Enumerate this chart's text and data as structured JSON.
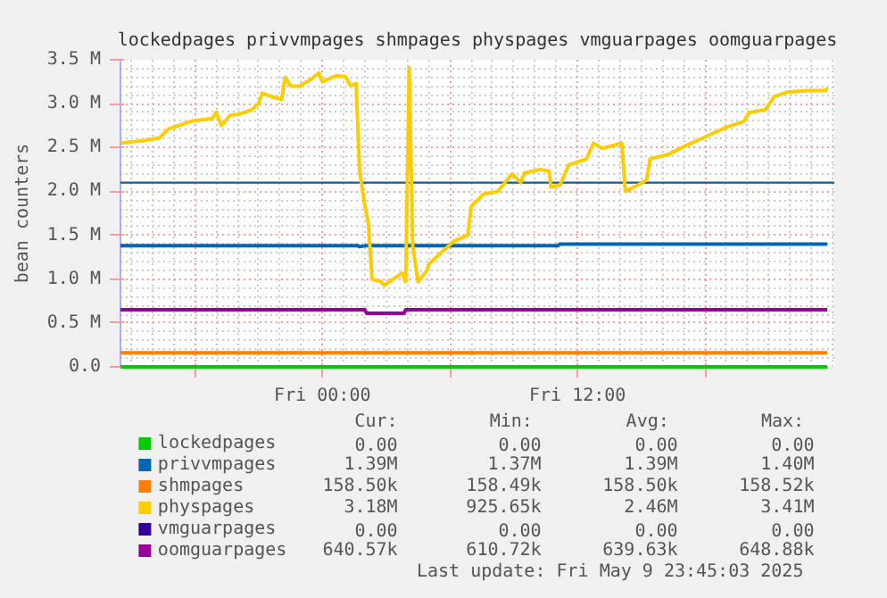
{
  "chart_data": {
    "type": "line",
    "title": "lockedpages privvmpages shmpages physpages vmguarpages oomguarpages",
    "ylabel": "bean counters",
    "xlim": [
      "2025-05-08T14:30",
      "2025-05-10T00:05"
    ],
    "xticks": [
      {
        "value": "2025-05-08T18:00",
        "label": null
      },
      {
        "value": "2025-05-09T00:00",
        "label": "Fri 00:00"
      },
      {
        "value": "2025-05-09T06:00",
        "label": null
      },
      {
        "value": "2025-05-09T12:00",
        "label": "Fri 12:00"
      },
      {
        "value": "2025-05-09T18:00",
        "label": null
      }
    ],
    "ylim": [
      0,
      3500000
    ],
    "yticks": [
      {
        "value": 0,
        "label": "0.0"
      },
      {
        "value": 500000,
        "label": "0.5 M"
      },
      {
        "value": 1000000,
        "label": "1.0 M"
      },
      {
        "value": 1500000,
        "label": "1.5 M"
      },
      {
        "value": 2000000,
        "label": "2.0 M"
      },
      {
        "value": 2500000,
        "label": "2.5 M"
      },
      {
        "value": 3000000,
        "label": "3.0 M"
      },
      {
        "value": 3500000,
        "label": "3.5 M"
      }
    ],
    "grid": true,
    "legend": "bottom",
    "ref_lines": [
      {
        "axis": "y",
        "value": 2100000,
        "color": "#1a5a96"
      }
    ],
    "series": [
      {
        "name": "lockedpages",
        "color": "#00cc00",
        "x": [
          "2025-05-08T14:30",
          "2025-05-09T23:45"
        ],
        "values": [
          0,
          0
        ]
      },
      {
        "name": "privvmpages",
        "color": "#0066b3",
        "x": [
          "2025-05-08T14:30",
          "2025-05-09T01:40",
          "2025-05-09T01:45",
          "2025-05-09T02:00",
          "2025-05-09T11:05",
          "2025-05-09T11:10",
          "2025-05-09T23:45"
        ],
        "values": [
          1380000,
          1380000,
          1370000,
          1380000,
          1380000,
          1400000,
          1400000
        ]
      },
      {
        "name": "shmpages",
        "color": "#ff8000",
        "x": [
          "2025-05-08T14:30",
          "2025-05-09T23:45"
        ],
        "values": [
          160000,
          160000
        ]
      },
      {
        "name": "physpages",
        "color": "#ffcc00",
        "x": [
          "2025-05-08T14:30",
          "2025-05-08T15:35",
          "2025-05-08T16:20",
          "2025-05-08T16:45",
          "2025-05-08T17:50",
          "2025-05-08T18:50",
          "2025-05-08T19:00",
          "2025-05-08T19:15",
          "2025-05-08T19:40",
          "2025-05-08T20:05",
          "2025-05-08T20:40",
          "2025-05-08T21:00",
          "2025-05-08T21:10",
          "2025-05-08T21:45",
          "2025-05-08T22:05",
          "2025-05-08T22:15",
          "2025-05-08T22:30",
          "2025-05-08T22:55",
          "2025-05-08T23:25",
          "2025-05-08T23:50",
          "2025-05-09T00:00",
          "2025-05-09T00:40",
          "2025-05-09T01:05",
          "2025-05-09T01:20",
          "2025-05-09T01:35",
          "2025-05-09T01:45",
          "2025-05-09T02:00",
          "2025-05-09T02:10",
          "2025-05-09T02:20",
          "2025-05-09T02:45",
          "2025-05-09T02:55",
          "2025-05-09T03:20",
          "2025-05-09T03:45",
          "2025-05-09T03:55",
          "2025-05-09T04:05",
          "2025-05-09T04:15",
          "2025-05-09T04:30",
          "2025-05-09T04:55",
          "2025-05-09T05:00",
          "2025-05-09T05:35",
          "2025-05-09T06:10",
          "2025-05-09T06:50",
          "2025-05-09T07:00",
          "2025-05-09T07:35",
          "2025-05-09T08:15",
          "2025-05-09T08:55",
          "2025-05-09T09:20",
          "2025-05-09T09:30",
          "2025-05-09T10:15",
          "2025-05-09T10:40",
          "2025-05-09T10:45",
          "2025-05-09T11:10",
          "2025-05-09T11:35",
          "2025-05-09T12:25",
          "2025-05-09T12:45",
          "2025-05-09T13:10",
          "2025-05-09T14:05",
          "2025-05-09T14:15",
          "2025-05-09T14:50",
          "2025-05-09T15:15",
          "2025-05-09T15:25",
          "2025-05-09T16:15",
          "2025-05-09T17:10",
          "2025-05-09T18:00",
          "2025-05-09T19:00",
          "2025-05-09T19:50",
          "2025-05-09T20:05",
          "2025-05-09T20:50",
          "2025-05-09T21:15",
          "2025-05-09T21:50",
          "2025-05-09T22:50",
          "2025-05-09T23:40",
          "2025-05-09T23:45"
        ],
        "values": [
          2550000,
          2580000,
          2610000,
          2710000,
          2800000,
          2830000,
          2900000,
          2750000,
          2870000,
          2880000,
          2930000,
          3000000,
          3120000,
          3070000,
          3050000,
          3300000,
          3200000,
          3200000,
          3270000,
          3350000,
          3250000,
          3320000,
          3310000,
          3200000,
          3230000,
          2230000,
          1830000,
          1630000,
          1000000,
          970000,
          930000,
          1000000,
          1070000,
          970000,
          3410000,
          1370000,
          970000,
          1100000,
          1170000,
          1300000,
          1430000,
          1500000,
          1830000,
          1970000,
          2000000,
          2200000,
          2100000,
          2210000,
          2250000,
          2230000,
          2050000,
          2070000,
          2300000,
          2370000,
          2550000,
          2490000,
          2550000,
          2000000,
          2070000,
          2130000,
          2370000,
          2420000,
          2530000,
          2620000,
          2730000,
          2800000,
          2900000,
          2930000,
          3080000,
          3130000,
          3150000,
          3150000,
          3180000
        ]
      },
      {
        "name": "vmguarpages",
        "color": "#330099"
      },
      {
        "name": "oomguarpages",
        "color": "#990099",
        "x": [
          "2025-05-08T14:30",
          "2025-05-09T02:00",
          "2025-05-09T02:05",
          "2025-05-09T03:50",
          "2025-05-09T03:55",
          "2025-05-09T23:45"
        ],
        "values": [
          650000,
          650000,
          610000,
          610000,
          650000,
          650000
        ]
      }
    ],
    "annotations": [
      "Cur:",
      "Min:",
      "Avg:",
      "Max:",
      "0.00",
      "0.00",
      "0.00",
      "0.00",
      "1.39M",
      "1.37M",
      "1.39M",
      "1.40M",
      "158.50k",
      "158.49k",
      "158.50k",
      "158.52k",
      "3.18M",
      "925.65k",
      "2.46M",
      "3.41M",
      "0.00",
      "0.00",
      "0.00",
      "0.00",
      "640.57k",
      "610.72k",
      "639.63k",
      "648.88k",
      "Last update: Fri May  9 23:45:03 2025"
    ]
  }
}
